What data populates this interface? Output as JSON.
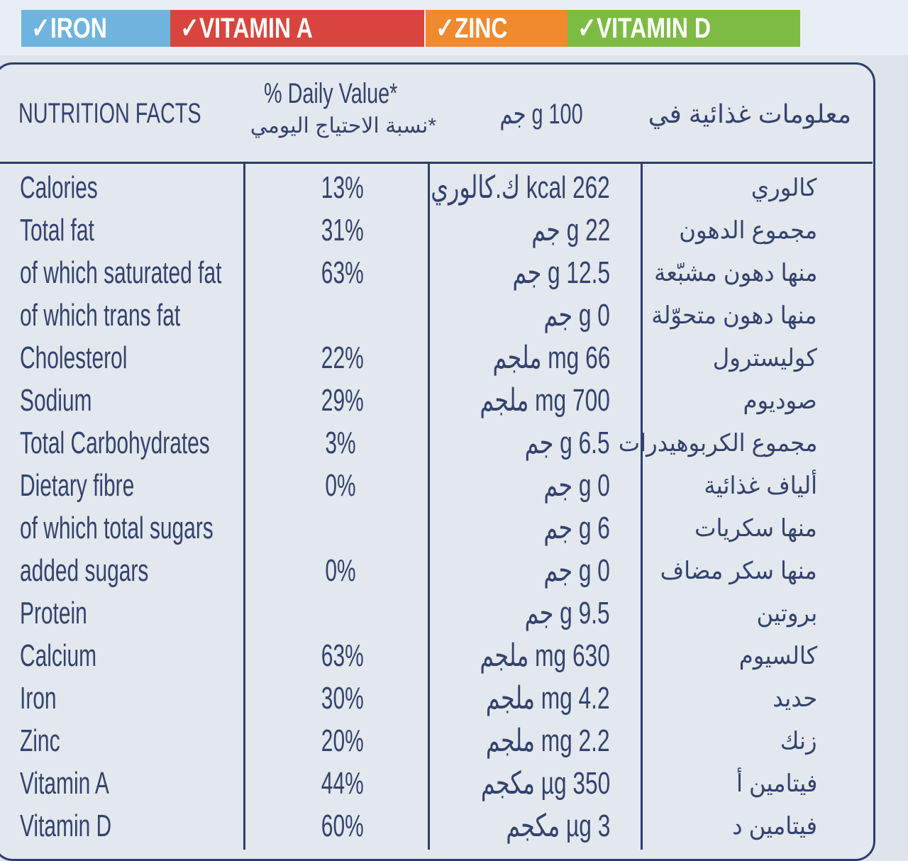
{
  "banner": {
    "tabs": [
      {
        "label": "✓IRON",
        "color": "#6fb4de"
      },
      {
        "label": "✓VITAMIN A",
        "color": "#d9453c"
      },
      {
        "label": "✓ZINC",
        "color": "#ef8a2f"
      },
      {
        "label": "✓VITAMIN D",
        "color": "#7dbb45"
      }
    ]
  },
  "header": {
    "title_en": "NUTRITION FACTS",
    "dv_en": "% Daily Value*",
    "dv_ar": "*نسبة الاحتياج اليومي",
    "per": "100 g جم",
    "title_ar": "معلومات غذائية في"
  },
  "rows": [
    {
      "en": "Calories",
      "dv": "13%",
      "amt": "262 kcal ك.كالوري",
      "ar": "كالوري"
    },
    {
      "en": "Total fat",
      "dv": "31%",
      "amt": "22 g جم",
      "ar": "مجموع الدهون"
    },
    {
      "en": "of which saturated fat",
      "dv": "63%",
      "amt": "12.5 g جم",
      "ar": "منها دهون مشبّعة"
    },
    {
      "en": "of which trans fat",
      "dv": "",
      "amt": "0 g جم",
      "ar": "منها دهون متحوّلة"
    },
    {
      "en": "Cholesterol",
      "dv": "22%",
      "amt": "66 mg ملجم",
      "ar": "كوليسترول"
    },
    {
      "en": "Sodium",
      "dv": "29%",
      "amt": "700 mg ملجم",
      "ar": "صوديوم"
    },
    {
      "en": "Total Carbohydrates",
      "dv": "3%",
      "amt": "6.5 g جم",
      "ar": "مجموع الكربوهيدرات"
    },
    {
      "en": "Dietary fibre",
      "dv": "0%",
      "amt": "0 g جم",
      "ar": "ألياف غذائية"
    },
    {
      "en": "of which total sugars",
      "dv": "",
      "amt": "6 g جم",
      "ar": "منها سكريات"
    },
    {
      "en": "added sugars",
      "dv": "0%",
      "amt": "0 g جم",
      "ar": "منها سكر مضاف"
    },
    {
      "en": "Protein",
      "dv": "",
      "amt": "9.5 g جم",
      "ar": "بروتين"
    },
    {
      "en": "Calcium",
      "dv": "63%",
      "amt": "630 mg ملجم",
      "ar": "كالسيوم"
    },
    {
      "en": "Iron",
      "dv": "30%",
      "amt": "4.2 mg ملجم",
      "ar": "حديد"
    },
    {
      "en": "Zinc",
      "dv": "20%",
      "amt": "2.2 mg ملجم",
      "ar": "زنك"
    },
    {
      "en": "Vitamin A",
      "dv": "44%",
      "amt": "350 µg مكجم",
      "ar": "فيتامين أ"
    },
    {
      "en": "Vitamin D",
      "dv": "60%",
      "amt": "3 µg مكجم",
      "ar": "فيتامين د"
    }
  ]
}
